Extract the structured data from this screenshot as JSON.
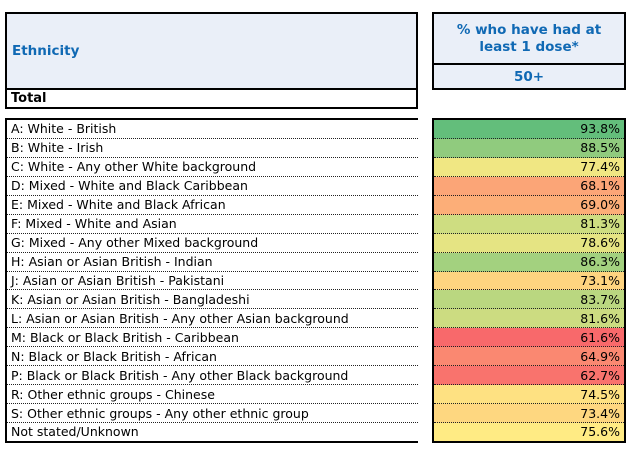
{
  "table": {
    "ethnicity_header": "Ethnicity",
    "total_label": "Total",
    "value_header": "% who have had at least 1 dose*",
    "age_group": "50+",
    "rows": [
      {
        "label": "A: White - British",
        "value": "93.8%",
        "color": "#63BE7B"
      },
      {
        "label": "B: White - Irish",
        "value": "88.5%",
        "color": "#90CB7E"
      },
      {
        "label": "C: White - Any other White background",
        "value": "77.4%",
        "color": "#F0E783"
      },
      {
        "label": "D: Mixed - White and Black Caribbean",
        "value": "68.1%",
        "color": "#FBA577"
      },
      {
        "label": "E: Mixed - White and Black African",
        "value": "69.0%",
        "color": "#FCAE78"
      },
      {
        "label": "F: Mixed - White and Asian",
        "value": "81.3%",
        "color": "#CEDD81"
      },
      {
        "label": "G: Mixed - Any other Mixed background",
        "value": "78.6%",
        "color": "#E5E483"
      },
      {
        "label": "H: Asian or Asian British - Indian",
        "value": "86.3%",
        "color": "#A3D17F"
      },
      {
        "label": "J: Asian or Asian British - Pakistani",
        "value": "73.1%",
        "color": "#FED480"
      },
      {
        "label": "K: Asian or Asian British - Bangladeshi",
        "value": "83.7%",
        "color": "#BAD780"
      },
      {
        "label": "L: Asian or Asian British - Any other Asian background",
        "value": "81.6%",
        "color": "#CCDC81"
      },
      {
        "label": "M: Black or Black British - Caribbean",
        "value": "61.6%",
        "color": "#F8696B"
      },
      {
        "label": "N: Black or Black British - African",
        "value": "64.9%",
        "color": "#FA8871"
      },
      {
        "label": "P: Black or Black British - Any other Black background",
        "value": "62.7%",
        "color": "#F9736D"
      },
      {
        "label": "R: Other ethnic groups - Chinese",
        "value": "74.5%",
        "color": "#FEE182"
      },
      {
        "label": "S: Other ethnic groups - Any other ethnic group",
        "value": "73.4%",
        "color": "#FED780"
      },
      {
        "label": "Not stated/Unknown",
        "value": "75.6%",
        "color": "#FFEB84"
      }
    ]
  },
  "colors": {
    "header_background": "#EAEFF8",
    "header_text_blue": "#1069B4",
    "border_black": "#000000"
  },
  "chart_data": {
    "type": "table",
    "title": "% who have had at least 1 dose*",
    "column_headers": [
      "Ethnicity",
      "50+"
    ],
    "categories": [
      "A: White - British",
      "B: White - Irish",
      "C: White - Any other White background",
      "D: Mixed - White and Black Caribbean",
      "E: Mixed - White and Black African",
      "F: Mixed - White and Asian",
      "G: Mixed - Any other Mixed background",
      "H: Asian or Asian British - Indian",
      "J: Asian or Asian British - Pakistani",
      "K: Asian or Asian British - Bangladeshi",
      "L: Asian or Asian British - Any other Asian background",
      "M: Black or Black British - Caribbean",
      "N: Black or Black British - African",
      "P: Black or Black British - Any other Black background",
      "R: Other ethnic groups - Chinese",
      "S: Other ethnic groups - Any other ethnic group",
      "Not stated/Unknown"
    ],
    "values": [
      93.8,
      88.5,
      77.4,
      68.1,
      69.0,
      81.3,
      78.6,
      86.3,
      73.1,
      83.7,
      81.6,
      61.6,
      64.9,
      62.7,
      74.5,
      73.4,
      75.6
    ],
    "value_unit": "%",
    "total_row_label": "Total",
    "color_scale": {
      "min_red": "#F8696B",
      "mid_yellow": "#FFEB84",
      "max_green": "#63BE7B"
    },
    "legend_position": "none",
    "grid": "dotted-row-separators"
  }
}
